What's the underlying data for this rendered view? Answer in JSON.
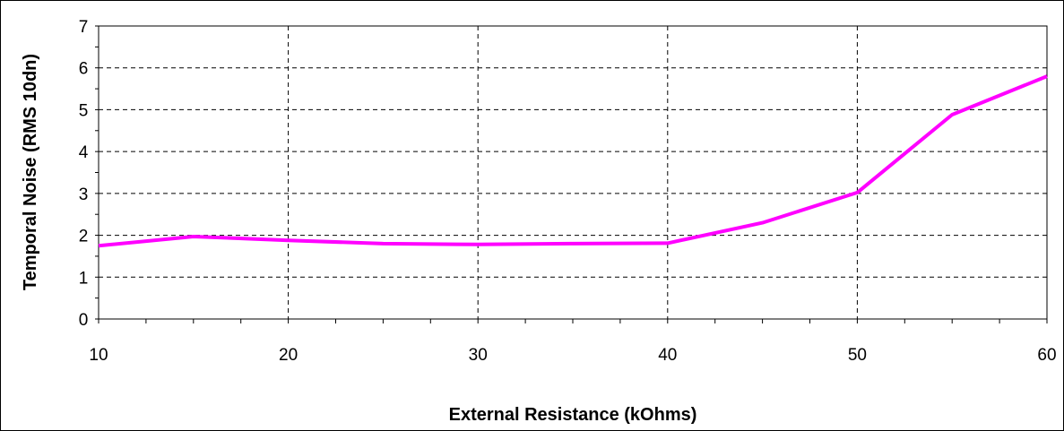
{
  "chart_data": {
    "type": "line",
    "title": "",
    "xlabel": "External Resistance (kOhms)",
    "ylabel": "Temporal Noise (RMS 10dn)",
    "xlim": [
      10,
      60
    ],
    "ylim": [
      0,
      7
    ],
    "x_ticks": [
      10,
      20,
      30,
      40,
      50,
      60
    ],
    "y_ticks": [
      0,
      1,
      2,
      3,
      4,
      5,
      6,
      7
    ],
    "grid": true,
    "legend": "none",
    "series": [
      {
        "color": "#ff00ff",
        "x": [
          10,
          15,
          20,
          25,
          30,
          35,
          40,
          45,
          50,
          55,
          60
        ],
        "y": [
          1.75,
          1.97,
          1.88,
          1.8,
          1.78,
          1.8,
          1.81,
          2.3,
          3.02,
          4.88,
          5.8
        ]
      }
    ]
  }
}
